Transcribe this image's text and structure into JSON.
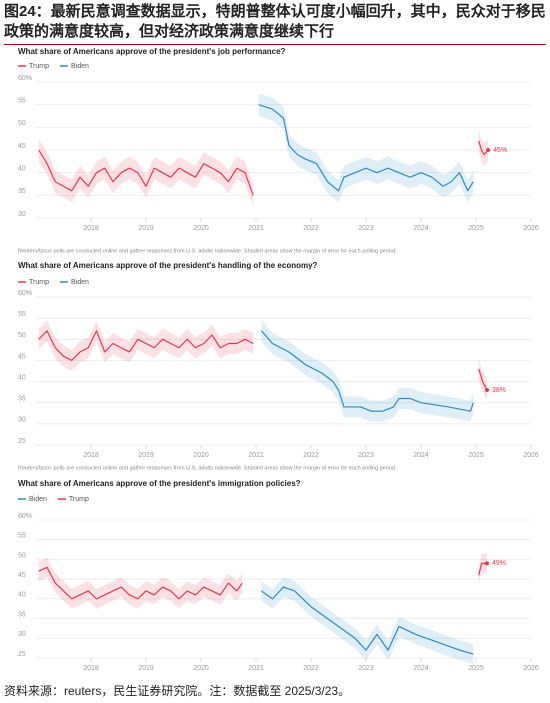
{
  "header": {
    "title": "图24：最新民意调查数据显示，特朗普整体认可度小幅回升，其中，民众对于移民政策的满意度较高，但对经济政策满意度继续下行"
  },
  "footer": "资料来源：reuters，民生证券研究院。注：数据截至 2025/3/23。",
  "chart_data": [
    {
      "type": "line",
      "title": "What share of Americans approve of the president's job performance?",
      "note": "Reuters/Ipsos polls are conducted online and gather responses from U.S. adults nationwide. Shaded areas show the margin of error for each polling period.",
      "xlim": [
        2017,
        2026
      ],
      "xticks": [
        2018,
        2019,
        2020,
        2021,
        2022,
        2023,
        2024,
        2025,
        2026
      ],
      "ylim": [
        30,
        60
      ],
      "yticks": [
        {
          "value": 60,
          "label": "60%"
        },
        55,
        50,
        45,
        40,
        35,
        30
      ],
      "grid": true,
      "end_label": {
        "x": 2025.22,
        "value": 45,
        "label": "45%"
      },
      "series": [
        {
          "name": "Trump",
          "color": "#e8374d",
          "margin": 2.5,
          "x": [
            2017.05,
            2017.2,
            2017.35,
            2017.5,
            2017.65,
            2017.8,
            2017.95,
            2018.1,
            2018.25,
            2018.4,
            2018.55,
            2018.7,
            2018.85,
            2019.0,
            2019.15,
            2019.3,
            2019.45,
            2019.6,
            2019.75,
            2019.9,
            2020.05,
            2020.2,
            2020.35,
            2020.5,
            2020.65,
            2020.8,
            2020.95,
            null,
            2025.05,
            2025.1,
            2025.15,
            2025.22
          ],
          "values": [
            45,
            42,
            38,
            37,
            36,
            39,
            37,
            40,
            41,
            38,
            40,
            41,
            40,
            37,
            41,
            40,
            39,
            41,
            40,
            39,
            42,
            41,
            40,
            38,
            41,
            40,
            35,
            null,
            47,
            45,
            44,
            45
          ]
        },
        {
          "name": "Biden",
          "color": "#2b8acb",
          "margin": 2.5,
          "x": [
            2021.05,
            2021.3,
            2021.5,
            2021.6,
            2021.75,
            2021.9,
            2022.1,
            2022.3,
            2022.5,
            2022.6,
            2022.8,
            2023.0,
            2023.2,
            2023.4,
            2023.6,
            2023.8,
            2024.0,
            2024.2,
            2024.4,
            2024.55,
            2024.7,
            2024.85,
            2024.95
          ],
          "values": [
            55,
            54,
            52,
            46,
            44,
            43,
            42,
            38,
            36,
            39,
            40,
            41,
            40,
            41,
            40,
            39,
            40,
            39,
            37,
            38,
            40,
            36,
            38
          ]
        }
      ]
    },
    {
      "type": "line",
      "title": "What share of Americans approve of the president's handling of the economy?",
      "note": "Reuters/Ipsos polls are conducted online and gather responses from U.S. adults nationwide. Shaded areas show the margin of error for each polling period.",
      "xlim": [
        2017,
        2026
      ],
      "xticks": [
        2018,
        2019,
        2020,
        2021,
        2022,
        2023,
        2024,
        2025,
        2026
      ],
      "ylim": [
        25,
        60
      ],
      "yticks": [
        {
          "value": 60,
          "label": "60%"
        },
        55,
        50,
        45,
        40,
        35,
        30,
        25
      ],
      "grid": true,
      "end_label": {
        "x": 2025.2,
        "value": 38,
        "label": "38%"
      },
      "series": [
        {
          "name": "Trump",
          "color": "#e8374d",
          "margin": 2.5,
          "x": [
            2017.05,
            2017.2,
            2017.35,
            2017.5,
            2017.65,
            2017.8,
            2017.95,
            2018.1,
            2018.25,
            2018.4,
            2018.55,
            2018.7,
            2018.85,
            2019.0,
            2019.15,
            2019.3,
            2019.45,
            2019.6,
            2019.75,
            2019.9,
            2020.05,
            2020.2,
            2020.35,
            2020.5,
            2020.65,
            2020.8,
            2020.95,
            null,
            2025.05,
            2025.12,
            2025.2
          ],
          "values": [
            50,
            52,
            48,
            46,
            45,
            47,
            48,
            52,
            47,
            49,
            48,
            47,
            50,
            49,
            48,
            50,
            49,
            48,
            50,
            48,
            49,
            51,
            48,
            49,
            49,
            50,
            49,
            null,
            43,
            40,
            38
          ]
        },
        {
          "name": "Biden",
          "color": "#2b8acb",
          "margin": 2.5,
          "x": [
            2021.1,
            2021.3,
            2021.6,
            2021.9,
            2022.2,
            2022.4,
            2022.5,
            2022.6,
            2022.9,
            2023.1,
            2023.3,
            2023.5,
            2023.6,
            2023.8,
            2024.0,
            2024.5,
            2024.9,
            2024.95
          ],
          "values": [
            52,
            49,
            47,
            44,
            42,
            40,
            38,
            34,
            34,
            33,
            33,
            34,
            36,
            36,
            35,
            34,
            33,
            35
          ]
        }
      ]
    },
    {
      "type": "line",
      "title": "What share of Americans approve of the president's immigration policies?",
      "xlim": [
        2017,
        2026
      ],
      "xticks": [
        2018,
        2019,
        2020,
        2021,
        2022,
        2023,
        2024,
        2025,
        2026
      ],
      "ylim": [
        25,
        60
      ],
      "yticks": [
        {
          "value": 60,
          "label": "60%"
        },
        55,
        50,
        45,
        40,
        35,
        30,
        25
      ],
      "grid": true,
      "end_label": {
        "x": 2025.2,
        "value": 49,
        "label": "49%"
      },
      "series": [
        {
          "name": "Biden",
          "color": "#2b8acb",
          "margin": 2.5,
          "x": [
            2021.1,
            2021.3,
            2021.5,
            2021.7,
            2022.0,
            2022.4,
            2022.8,
            2023.0,
            2023.2,
            2023.4,
            2023.6,
            2023.9,
            2024.3,
            2024.7,
            2024.95
          ],
          "values": [
            42,
            40,
            43,
            42,
            38,
            34,
            30,
            27,
            31,
            27,
            33,
            31,
            29,
            27,
            26
          ]
        },
        {
          "name": "Trump",
          "color": "#e8374d",
          "margin": 2.5,
          "x": [
            2017.05,
            2017.2,
            2017.35,
            2017.5,
            2017.65,
            2017.8,
            2017.95,
            2018.1,
            2018.25,
            2018.4,
            2018.55,
            2018.7,
            2018.85,
            2019.0,
            2019.15,
            2019.3,
            2019.45,
            2019.6,
            2019.75,
            2019.9,
            2020.05,
            2020.2,
            2020.35,
            2020.5,
            2020.65,
            2020.75,
            null,
            2025.05,
            2025.1,
            2025.2
          ],
          "values": [
            47,
            48,
            44,
            42,
            40,
            41,
            42,
            40,
            41,
            42,
            43,
            41,
            40,
            42,
            41,
            43,
            42,
            40,
            42,
            41,
            43,
            42,
            41,
            44,
            42,
            44,
            null,
            46,
            49,
            49
          ]
        }
      ]
    }
  ]
}
